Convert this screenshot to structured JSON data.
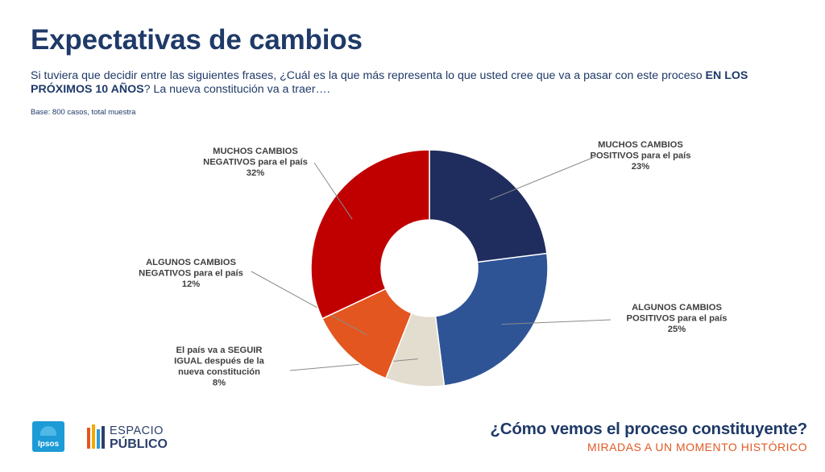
{
  "slide": {
    "title": "Expectativas de cambios",
    "question_part1": "Si tuviera que decidir entre las siguientes frases, ¿Cuál es la que más representa lo que usted cree que va a pasar con este proceso ",
    "question_bold": "EN LOS PRÓXIMOS 10 AÑOS",
    "question_part2": "? La nueva constitución va a traer….",
    "base": "Base: 800 casos, total muestra"
  },
  "chart_data": {
    "type": "pie",
    "donut": true,
    "title": "",
    "legend": "none",
    "slices": [
      {
        "label_lines": [
          "MUCHOS CAMBIOS",
          "POSITIVOS  para el país"
        ],
        "value": 23,
        "display": "23%",
        "color": "#1f2d5e"
      },
      {
        "label_lines": [
          "ALGUNOS CAMBIOS",
          "POSITIVOS  para el país"
        ],
        "value": 25,
        "display": "25%",
        "color": "#2e5496"
      },
      {
        "label_lines": [
          "El país va a SEGUIR",
          "IGUAL  después de la",
          "nueva constitución"
        ],
        "value": 8,
        "display": "8%",
        "color": "#e3ddcf"
      },
      {
        "label_lines": [
          "ALGUNOS CAMBIOS",
          "NEGATIVOS  para el país"
        ],
        "value": 12,
        "display": "12%",
        "color": "#e4561f"
      },
      {
        "label_lines": [
          "MUCHOS CAMBIOS",
          "NEGATIVOS  para el país"
        ],
        "value": 32,
        "display": "32%",
        "color": "#c00000"
      }
    ]
  },
  "footer": {
    "ipsos_logo_text": "Ipsos",
    "espacio_word1": "ESPACIO",
    "espacio_word2": "PÚBLICO",
    "series_title": "¿Cómo vemos el proceso constituyente?",
    "series_subtitle": "MIRADAS A UN MOMENTO HISTÓRICO"
  }
}
